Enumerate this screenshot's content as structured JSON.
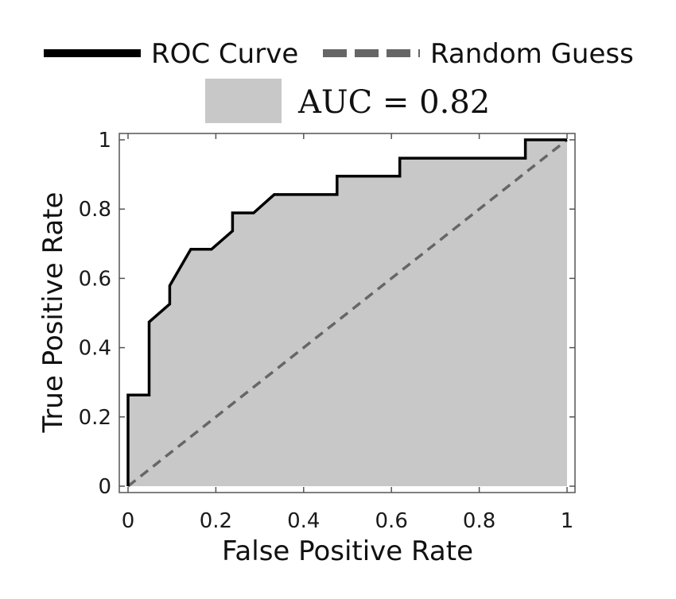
{
  "chart_data": {
    "type": "line",
    "xlabel": "False Positive Rate",
    "ylabel": "True Positive Rate",
    "xlim": [
      0,
      1
    ],
    "ylim": [
      0,
      1
    ],
    "xticks": [
      "0",
      "0.2",
      "0.4",
      "0.6",
      "0.8",
      "1"
    ],
    "yticks": [
      "0",
      "0.2",
      "0.4",
      "0.6",
      "0.8",
      "1"
    ],
    "grid": false,
    "legend_position": "top",
    "series": [
      {
        "name": "ROC Curve",
        "color": "#000000",
        "style": "solid",
        "x": [
          0,
          0,
          0.048,
          0.048,
          0.095,
          0.095,
          0.143,
          0.19,
          0.238,
          0.238,
          0.286,
          0.333,
          0.476,
          0.476,
          0.619,
          0.619,
          0.905,
          0.905,
          1.0
        ],
        "y": [
          0,
          0.263,
          0.263,
          0.474,
          0.526,
          0.579,
          0.684,
          0.684,
          0.737,
          0.789,
          0.789,
          0.842,
          0.842,
          0.895,
          0.895,
          0.947,
          0.947,
          1.0,
          1.0
        ]
      },
      {
        "name": "Random Guess",
        "color": "#666666",
        "style": "dashed",
        "x": [
          0,
          1
        ],
        "y": [
          0,
          1
        ]
      }
    ],
    "auc": {
      "label": "AUC = 0.82",
      "value": 0.82,
      "fill_color": "#c8c8c8"
    }
  }
}
